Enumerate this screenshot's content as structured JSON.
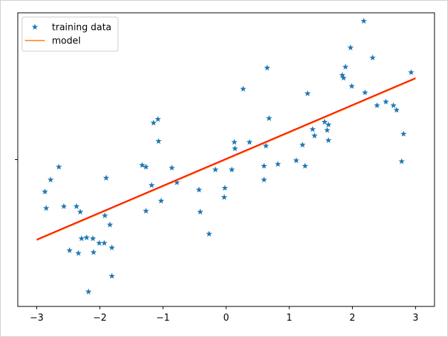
{
  "chart_data": {
    "type": "scatter",
    "title": "",
    "xlabel": "",
    "ylabel": "",
    "xlim": [
      -3.3,
      3.3
    ],
    "ylim": [
      -1.6,
      1.6
    ],
    "grid": false,
    "legend_position": "top-left",
    "x_ticks": [
      -3,
      -2,
      -1,
      0,
      1,
      2,
      3
    ],
    "x_tick_labels": [
      "−3",
      "−2",
      "−1",
      "0",
      "1",
      "2",
      "3"
    ],
    "y_ticks": [
      0
    ],
    "series": [
      {
        "name": "training data",
        "kind": "scatter",
        "marker": "star",
        "color": "#1f77b4",
        "points": [
          [
            -2.87,
            -0.35
          ],
          [
            -2.85,
            -0.53
          ],
          [
            -2.78,
            -0.22
          ],
          [
            -2.65,
            -0.08
          ],
          [
            -2.57,
            -0.51
          ],
          [
            -2.48,
            -0.99
          ],
          [
            -2.37,
            -0.51
          ],
          [
            -2.34,
            -1.02
          ],
          [
            -2.31,
            -0.57
          ],
          [
            -2.29,
            -0.86
          ],
          [
            -2.21,
            -0.85
          ],
          [
            -2.18,
            -1.44
          ],
          [
            -2.11,
            -0.86
          ],
          [
            -2.1,
            -1.01
          ],
          [
            -2.01,
            -0.91
          ],
          [
            -1.93,
            -0.91
          ],
          [
            -1.92,
            -0.61
          ],
          [
            -1.9,
            -0.2
          ],
          [
            -1.84,
            -0.71
          ],
          [
            -1.81,
            -0.96
          ],
          [
            -1.81,
            -1.27
          ],
          [
            -1.33,
            -0.06
          ],
          [
            -1.27,
            -0.08
          ],
          [
            -1.27,
            -0.56
          ],
          [
            -1.18,
            -0.28
          ],
          [
            -1.15,
            0.4
          ],
          [
            -1.08,
            0.44
          ],
          [
            -1.07,
            0.2
          ],
          [
            -1.03,
            -0.45
          ],
          [
            -0.86,
            -0.09
          ],
          [
            -0.78,
            -0.25
          ],
          [
            -0.43,
            -0.33
          ],
          [
            -0.41,
            -0.57
          ],
          [
            -0.27,
            -0.81
          ],
          [
            -0.17,
            -0.11
          ],
          [
            -0.02,
            -0.31
          ],
          [
            -0.03,
            -0.41
          ],
          [
            0.09,
            -0.11
          ],
          [
            0.13,
            0.19
          ],
          [
            0.14,
            0.12
          ],
          [
            0.27,
            0.77
          ],
          [
            0.37,
            0.19
          ],
          [
            0.6,
            -0.07
          ],
          [
            0.6,
            -0.22
          ],
          [
            0.63,
            0.15
          ],
          [
            0.65,
            1.0
          ],
          [
            0.68,
            0.45
          ],
          [
            0.82,
            -0.05
          ],
          [
            1.11,
            -0.01
          ],
          [
            1.21,
            0.16
          ],
          [
            1.25,
            -0.07
          ],
          [
            1.29,
            0.72
          ],
          [
            1.37,
            0.33
          ],
          [
            1.4,
            0.26
          ],
          [
            1.56,
            0.41
          ],
          [
            1.6,
            0.32
          ],
          [
            1.62,
            0.38
          ],
          [
            1.62,
            0.21
          ],
          [
            1.84,
            0.92
          ],
          [
            1.86,
            0.89
          ],
          [
            1.89,
            1.01
          ],
          [
            1.97,
            1.22
          ],
          [
            1.99,
            0.8
          ],
          [
            2.18,
            1.51
          ],
          [
            2.2,
            0.73
          ],
          [
            2.32,
            1.11
          ],
          [
            2.39,
            0.59
          ],
          [
            2.53,
            0.63
          ],
          [
            2.65,
            0.59
          ],
          [
            2.7,
            0.54
          ],
          [
            2.78,
            -0.02
          ],
          [
            2.81,
            0.28
          ],
          [
            2.93,
            0.95
          ]
        ]
      },
      {
        "name": "model",
        "kind": "line",
        "color": "#ff7f0e",
        "points": [
          [
            -3.0,
            -0.88
          ],
          [
            3.0,
            0.88
          ]
        ]
      },
      {
        "name": "",
        "kind": "line",
        "color": "#ff0000",
        "points": [
          [
            -3.0,
            -0.87
          ],
          [
            3.0,
            0.89
          ]
        ]
      }
    ]
  }
}
